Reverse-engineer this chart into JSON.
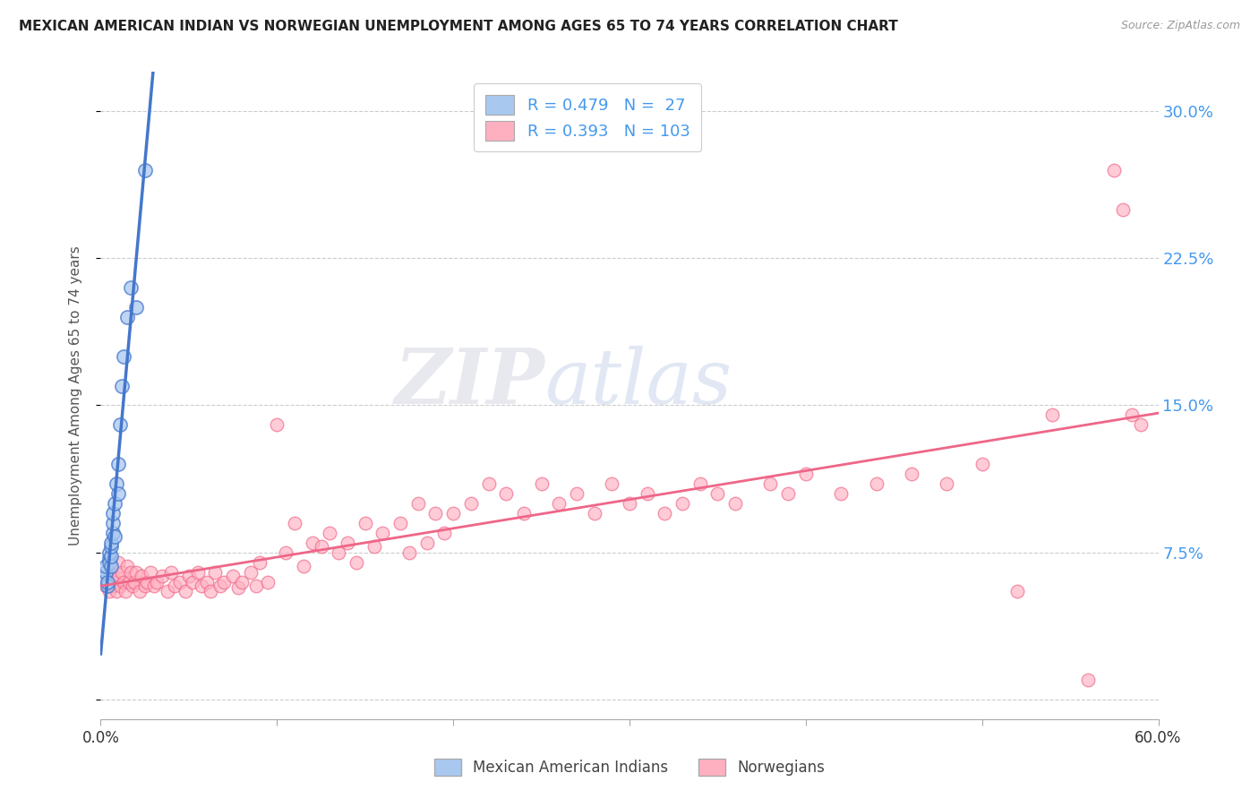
{
  "title": "MEXICAN AMERICAN INDIAN VS NORWEGIAN UNEMPLOYMENT AMONG AGES 65 TO 74 YEARS CORRELATION CHART",
  "source": "Source: ZipAtlas.com",
  "ylabel": "Unemployment Among Ages 65 to 74 years",
  "xlim": [
    0.0,
    0.6
  ],
  "ylim": [
    -0.01,
    0.32
  ],
  "yticks": [
    0.0,
    0.075,
    0.15,
    0.225,
    0.3
  ],
  "ytick_labels": [
    "",
    "7.5%",
    "15.0%",
    "22.5%",
    "30.0%"
  ],
  "xticks": [
    0.0,
    0.1,
    0.2,
    0.3,
    0.4,
    0.5,
    0.6
  ],
  "xtick_labels": [
    "0.0%",
    "",
    "",
    "",
    "",
    "",
    "60.0%"
  ],
  "legend_r1": "R = 0.479",
  "legend_n1": "N =  27",
  "legend_r2": "R = 0.393",
  "legend_n2": "N = 103",
  "blue_color": "#A8C8F0",
  "pink_color": "#FFB0C0",
  "line_blue": "#4477CC",
  "line_pink": "#EE6688",
  "watermark_zip": "ZIP",
  "watermark_atlas": "atlas",
  "blue_scatter_x": [
    0.002,
    0.003,
    0.003,
    0.004,
    0.004,
    0.005,
    0.005,
    0.005,
    0.006,
    0.006,
    0.006,
    0.006,
    0.007,
    0.007,
    0.007,
    0.008,
    0.008,
    0.009,
    0.01,
    0.01,
    0.011,
    0.012,
    0.013,
    0.015,
    0.017,
    0.02,
    0.025
  ],
  "blue_scatter_y": [
    0.062,
    0.065,
    0.068,
    0.058,
    0.06,
    0.072,
    0.07,
    0.075,
    0.068,
    0.073,
    0.078,
    0.08,
    0.085,
    0.09,
    0.095,
    0.083,
    0.1,
    0.11,
    0.105,
    0.12,
    0.14,
    0.16,
    0.175,
    0.195,
    0.21,
    0.2,
    0.27
  ],
  "pink_scatter_x": [
    0.002,
    0.003,
    0.004,
    0.005,
    0.005,
    0.006,
    0.006,
    0.007,
    0.007,
    0.008,
    0.009,
    0.01,
    0.01,
    0.011,
    0.012,
    0.013,
    0.014,
    0.015,
    0.016,
    0.017,
    0.018,
    0.019,
    0.02,
    0.022,
    0.023,
    0.025,
    0.026,
    0.028,
    0.03,
    0.032,
    0.035,
    0.038,
    0.04,
    0.042,
    0.045,
    0.048,
    0.05,
    0.052,
    0.055,
    0.057,
    0.06,
    0.062,
    0.065,
    0.068,
    0.07,
    0.075,
    0.078,
    0.08,
    0.085,
    0.088,
    0.09,
    0.095,
    0.1,
    0.105,
    0.11,
    0.115,
    0.12,
    0.125,
    0.13,
    0.135,
    0.14,
    0.145,
    0.15,
    0.155,
    0.16,
    0.17,
    0.175,
    0.18,
    0.185,
    0.19,
    0.195,
    0.2,
    0.21,
    0.22,
    0.23,
    0.24,
    0.25,
    0.26,
    0.27,
    0.28,
    0.29,
    0.3,
    0.31,
    0.32,
    0.33,
    0.34,
    0.35,
    0.36,
    0.38,
    0.39,
    0.4,
    0.42,
    0.44,
    0.46,
    0.48,
    0.5,
    0.52,
    0.54,
    0.56,
    0.575,
    0.58,
    0.585,
    0.59
  ],
  "pink_scatter_y": [
    0.062,
    0.058,
    0.06,
    0.055,
    0.065,
    0.06,
    0.068,
    0.058,
    0.063,
    0.06,
    0.055,
    0.062,
    0.07,
    0.058,
    0.065,
    0.06,
    0.055,
    0.068,
    0.06,
    0.065,
    0.058,
    0.06,
    0.065,
    0.055,
    0.063,
    0.058,
    0.06,
    0.065,
    0.058,
    0.06,
    0.063,
    0.055,
    0.065,
    0.058,
    0.06,
    0.055,
    0.063,
    0.06,
    0.065,
    0.058,
    0.06,
    0.055,
    0.065,
    0.058,
    0.06,
    0.063,
    0.057,
    0.06,
    0.065,
    0.058,
    0.07,
    0.06,
    0.14,
    0.075,
    0.09,
    0.068,
    0.08,
    0.078,
    0.085,
    0.075,
    0.08,
    0.07,
    0.09,
    0.078,
    0.085,
    0.09,
    0.075,
    0.1,
    0.08,
    0.095,
    0.085,
    0.095,
    0.1,
    0.11,
    0.105,
    0.095,
    0.11,
    0.1,
    0.105,
    0.095,
    0.11,
    0.1,
    0.105,
    0.095,
    0.1,
    0.11,
    0.105,
    0.1,
    0.11,
    0.105,
    0.115,
    0.105,
    0.11,
    0.115,
    0.11,
    0.12,
    0.055,
    0.145,
    0.01,
    0.27,
    0.25,
    0.145,
    0.14
  ]
}
